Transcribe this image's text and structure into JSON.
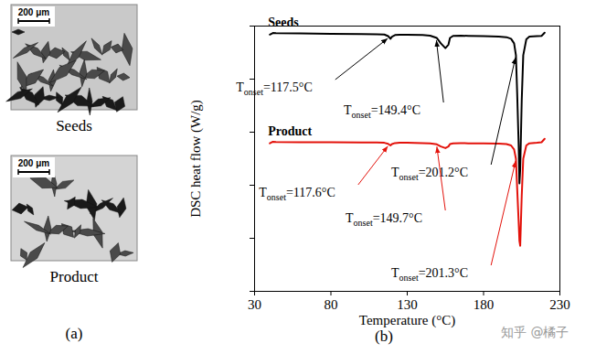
{
  "chart_data": {
    "type": "line",
    "x_label": "Temperature (°C)",
    "y_label": "DSC heat flow (W/g)",
    "xlim": [
      30,
      230
    ],
    "xticks": [
      30,
      80,
      130,
      180,
      230
    ],
    "ylim": [
      0,
      10
    ],
    "yticks": [
      0,
      2,
      4,
      6,
      8,
      10
    ],
    "tick_labels": "x",
    "x": [
      40,
      42,
      44,
      60,
      80,
      100,
      110,
      115,
      117.5,
      119,
      120,
      122,
      125,
      130,
      140,
      145,
      149.4,
      152,
      155,
      157,
      158,
      160,
      165,
      170,
      180,
      190,
      195,
      198,
      200,
      201.2,
      202,
      203,
      203.5,
      204,
      205,
      206,
      208,
      210,
      215,
      218,
      220
    ],
    "series": [
      {
        "name": "Seeds",
        "color": "#000000",
        "values": [
          9.68,
          9.74,
          9.73,
          9.72,
          9.71,
          9.7,
          9.69,
          9.68,
          9.62,
          9.52,
          9.6,
          9.66,
          9.67,
          9.67,
          9.66,
          9.64,
          9.55,
          9.35,
          9.17,
          9.3,
          9.55,
          9.63,
          9.64,
          9.63,
          9.62,
          9.6,
          9.58,
          9.52,
          9.35,
          8.9,
          7.5,
          5.5,
          4.07,
          4.6,
          7.2,
          8.9,
          9.5,
          9.6,
          9.62,
          9.63,
          9.75
        ]
      },
      {
        "name": "Product",
        "color": "#e3120b",
        "values": [
          5.58,
          5.64,
          5.63,
          5.62,
          5.62,
          5.61,
          5.61,
          5.6,
          5.56,
          5.5,
          5.55,
          5.59,
          5.6,
          5.6,
          5.59,
          5.58,
          5.54,
          5.46,
          5.4,
          5.46,
          5.55,
          5.58,
          5.59,
          5.58,
          5.58,
          5.57,
          5.55,
          5.5,
          5.35,
          5.0,
          3.9,
          2.6,
          1.9,
          1.72,
          3.6,
          5.0,
          5.5,
          5.58,
          5.6,
          5.62,
          5.75
        ]
      }
    ],
    "annotations": [
      {
        "series": "Seeds",
        "x": 117.5,
        "y": 9.62,
        "label": {
          "main": "T",
          "sub": "onset",
          "rest": "=117.5°C"
        }
      },
      {
        "series": "Seeds",
        "x": 149.4,
        "y": 9.55,
        "label": {
          "main": "T",
          "sub": "onset",
          "rest": "=149.4°C"
        }
      },
      {
        "series": "Seeds",
        "x": 201.2,
        "y": 8.9,
        "label": {
          "main": "T",
          "sub": "onset",
          "rest": "=201.2°C"
        }
      },
      {
        "series": "Product",
        "x": 117.6,
        "y": 5.56,
        "label": {
          "main": "T",
          "sub": "onset",
          "rest": "=117.6°C"
        }
      },
      {
        "series": "Product",
        "x": 149.7,
        "y": 5.54,
        "label": {
          "main": "T",
          "sub": "onset",
          "rest": "=149.7°C"
        }
      },
      {
        "series": "Product",
        "x": 201.3,
        "y": 5.0,
        "label": {
          "main": "T",
          "sub": "onset",
          "rest": "=201.3°C"
        }
      }
    ],
    "panel_label": "(b)"
  },
  "panel_a": {
    "images": [
      {
        "caption": "Seeds",
        "scale_bar": "200 μm"
      },
      {
        "caption": "Product",
        "scale_bar": "200 μm"
      }
    ],
    "panel_label": "(a)"
  },
  "watermark": "知乎 @橘子"
}
